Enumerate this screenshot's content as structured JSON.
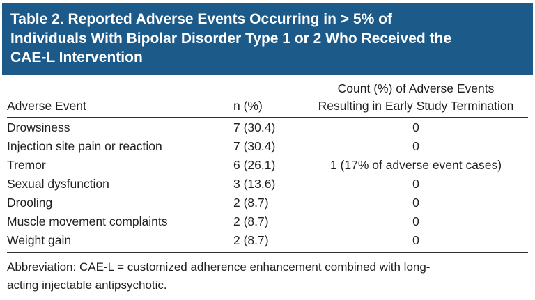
{
  "table": {
    "title_lines": [
      "Table 2. Reported Adverse Events Occurring in > 5% of",
      "Individuals With Bipolar Disorder Type 1 or 2 Who Received the",
      "CAE-L Intervention"
    ],
    "columns": {
      "event": "Adverse Event",
      "n": "n (%)",
      "termination_lines": [
        "Count (%) of Adverse Events",
        "Resulting in Early Study Termination"
      ]
    },
    "rows": [
      {
        "event": "Drowsiness",
        "n": "7 (30.4)",
        "termination": "0"
      },
      {
        "event": "Injection site pain or reaction",
        "n": "7 (30.4)",
        "termination": "0"
      },
      {
        "event": "Tremor",
        "n": "6 (26.1)",
        "termination": "1 (17% of adverse event cases)"
      },
      {
        "event": "Sexual dysfunction",
        "n": "3 (13.6)",
        "termination": "0"
      },
      {
        "event": "Drooling",
        "n": "2 (8.7)",
        "termination": "0"
      },
      {
        "event": "Muscle movement complaints",
        "n": "2 (8.7)",
        "termination": "0"
      },
      {
        "event": "Weight gain",
        "n": "2 (8.7)",
        "termination": "0"
      }
    ],
    "footnote_lines": [
      "Abbreviation: CAE-L = customized adherence enhancement combined with long-",
      "acting injectable antipsychotic."
    ]
  },
  "colors": {
    "banner_background": "#1c5a8a",
    "banner_text": "#ffffff",
    "body_text": "#1f1f1f",
    "rule": "#2e2e2e"
  }
}
